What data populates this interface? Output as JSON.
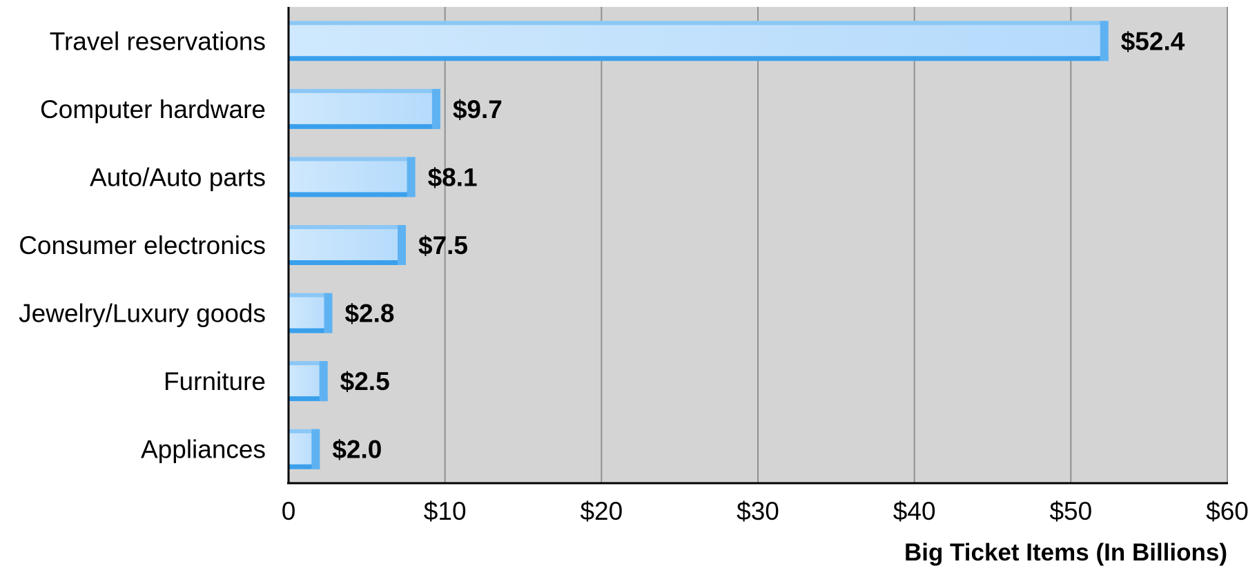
{
  "chart_data": {
    "type": "bar",
    "orientation": "horizontal",
    "categories": [
      "Travel reservations",
      "Computer hardware",
      "Auto/Auto parts",
      "Consumer electronics",
      "Jewelry/Luxury goods",
      "Furniture",
      "Appliances"
    ],
    "values": [
      52.4,
      9.7,
      8.1,
      7.5,
      2.8,
      2.5,
      2.0
    ],
    "value_labels": [
      "$52.4",
      "$9.7",
      "$8.1",
      "$7.5",
      "$2.8",
      "$2.5",
      "$2.0"
    ],
    "xticks": [
      0,
      10,
      20,
      30,
      40,
      50,
      60
    ],
    "xtick_labels": [
      "0",
      "$10",
      "$20",
      "$30",
      "$40",
      "$50",
      "$60"
    ],
    "xlim": [
      0,
      60
    ],
    "xlabel": "Big Ticket Items (In Billions)",
    "ylabel": "",
    "title": "",
    "grid": "vertical",
    "legend": "none",
    "colors": {
      "plot_background": "#d4d4d4",
      "bar_face": "#b7dcfb",
      "bar_face_light": "#cfe8fd",
      "bar_top": "#8cc7f5",
      "bar_bottom": "#3aa0ec",
      "bar_end": "#5fb2f1",
      "grid": "#8f8f8f",
      "axis": "#000000"
    }
  }
}
